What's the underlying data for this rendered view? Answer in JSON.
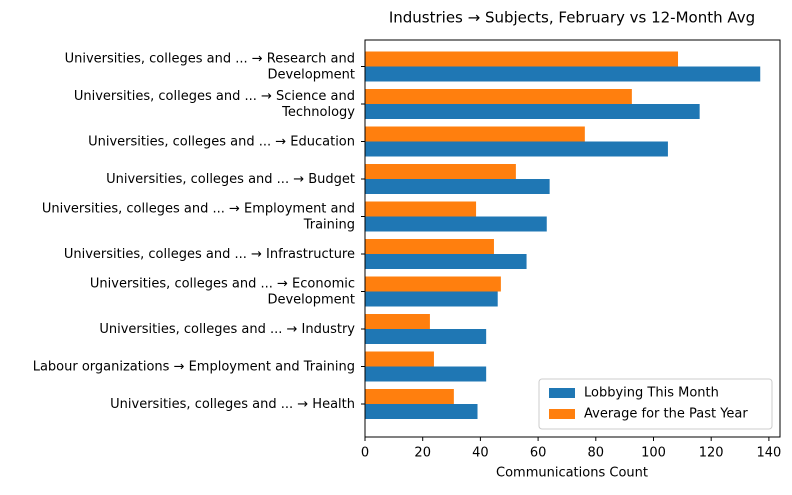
{
  "chart_data": {
    "type": "barh",
    "title": "Industries → Subjects, February vs 12-Month Avg",
    "x_label": "Communications Count",
    "categories": [
      "Universities, colleges and ... → Research and\nDevelopment",
      "Universities, colleges and ... → Science and\nTechnology",
      "Universities, colleges and ... → Education",
      "Universities, colleges and ... → Budget",
      "Universities, colleges and ... → Employment and\nTraining",
      "Universities, colleges and ... → Infrastructure",
      "Universities, colleges and ... → Economic\nDevelopment",
      "Universities, colleges and ... → Industry",
      "Labour organizations → Employment and Training",
      "Universities, colleges and ... → Health"
    ],
    "series": [
      {
        "name": "Lobbying This Month",
        "color": "#1f77b4",
        "values": [
          137,
          116,
          105,
          64,
          63,
          56,
          46,
          42,
          42,
          39
        ]
      },
      {
        "name": "Average for the Past Year",
        "color": "#ff7f0e",
        "values": [
          108.5,
          92.5,
          76.2,
          52.3,
          38.5,
          44.7,
          47.1,
          22.5,
          23.9,
          30.8
        ]
      }
    ],
    "xlim": [
      0,
      143.85
    ],
    "xticks": [
      0,
      20,
      40,
      60,
      80,
      100,
      120,
      140
    ],
    "legend": "lower right"
  }
}
